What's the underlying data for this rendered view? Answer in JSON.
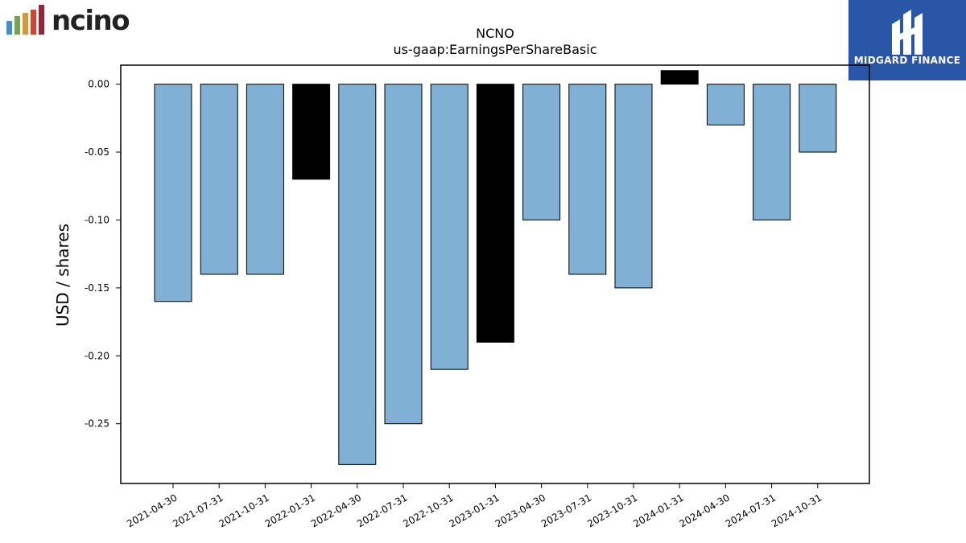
{
  "logos": {
    "left_brand": "ncino",
    "left_bar_colors": [
      "#4a90b8",
      "#7ba05b",
      "#d09a45",
      "#c44a3a",
      "#8b2a3a"
    ],
    "right_brand": "MIDGARD FINANCE",
    "right_bg": "#2a56a8"
  },
  "chart_data": {
    "type": "bar",
    "title": "NCNO",
    "subtitle": "us-gaap:EarningsPerShareBasic",
    "xlabel": "",
    "ylabel": "USD / shares",
    "categories": [
      "2021-04-30",
      "2021-07-31",
      "2021-10-31",
      "2022-01-31",
      "2022-04-30",
      "2022-07-31",
      "2022-10-31",
      "2023-01-31",
      "2023-04-30",
      "2023-07-31",
      "2023-10-31",
      "2024-01-31",
      "2024-04-30",
      "2024-07-31",
      "2024-10-31"
    ],
    "values": [
      -0.16,
      -0.14,
      -0.14,
      -0.07,
      -0.28,
      -0.25,
      -0.21,
      -0.19,
      -0.1,
      -0.14,
      -0.15,
      0.01,
      -0.03,
      -0.1,
      -0.05
    ],
    "highlight": [
      false,
      false,
      false,
      true,
      false,
      false,
      false,
      true,
      false,
      false,
      false,
      true,
      false,
      false,
      false
    ],
    "colors": {
      "normal": "#80b0d4",
      "highlight": "#000000",
      "edge": "#000000"
    },
    "yticks": [
      "0.00",
      "-0.05",
      "-0.10",
      "-0.15",
      "-0.20",
      "-0.25"
    ],
    "ytick_values": [
      0,
      -0.05,
      -0.1,
      -0.15,
      -0.2,
      -0.25
    ],
    "ylim": [
      -0.294,
      0.014
    ],
    "grid": false
  }
}
